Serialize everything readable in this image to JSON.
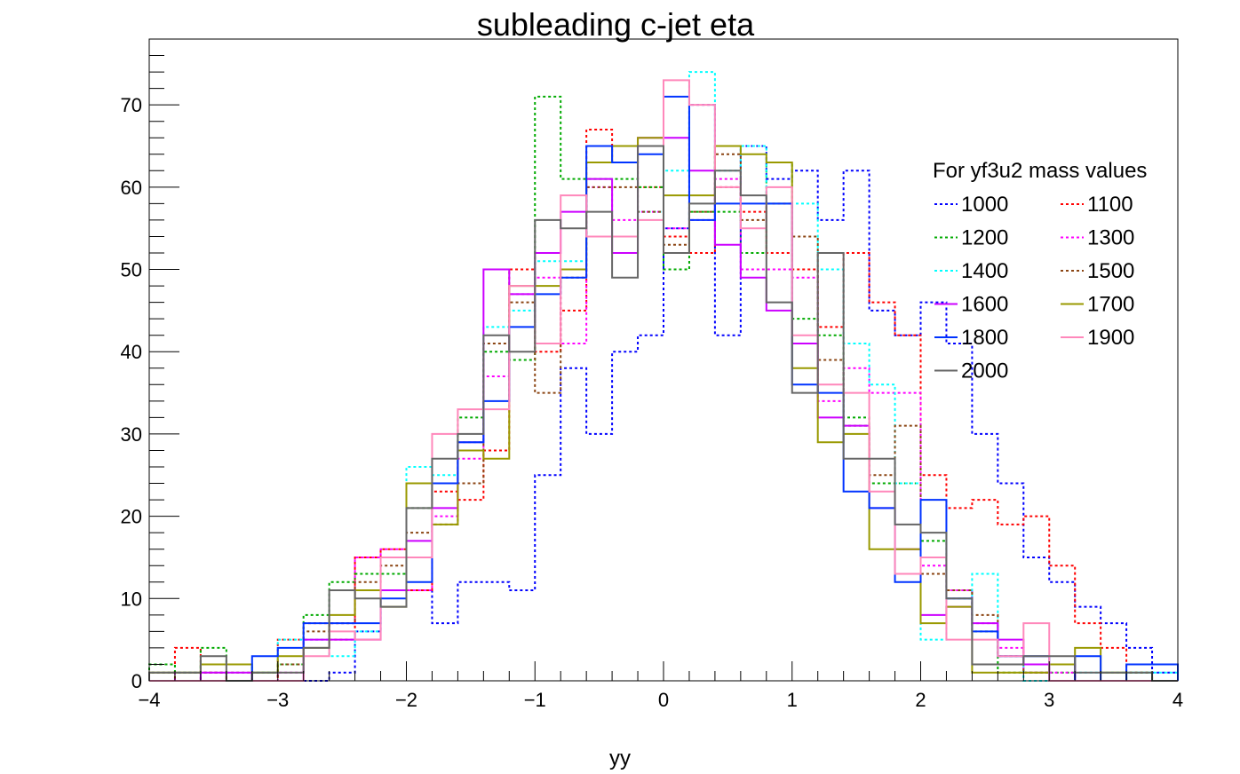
{
  "chart_data": {
    "type": "histogram",
    "title": "subleading c-jet eta",
    "xlabel": "yy",
    "ylabel": "",
    "xlim": [
      -4,
      4
    ],
    "ylim": [
      0,
      78
    ],
    "x_ticks": [
      "−4",
      "−3",
      "−2",
      "−1",
      "0",
      "1",
      "2",
      "3",
      "4"
    ],
    "y_ticks": [
      "0",
      "10",
      "20",
      "30",
      "40",
      "50",
      "60",
      "70"
    ],
    "grid": false,
    "legend_position": "top-right",
    "legend_title": "For yf3u2 mass values",
    "bins": {
      "min": -4,
      "max": 4,
      "count": 40
    },
    "series": [
      {
        "name": "1000",
        "color": "#0000ff",
        "dashed": true,
        "values": [
          0,
          0,
          0,
          0,
          0,
          0,
          0,
          1,
          6,
          11,
          11,
          7,
          12,
          12,
          11,
          25,
          38,
          30,
          40,
          42,
          55,
          70,
          42,
          65,
          61,
          62,
          56,
          62,
          45,
          42,
          46,
          41,
          30,
          24,
          15,
          12,
          9,
          7,
          4,
          1
        ]
      },
      {
        "name": "1100",
        "color": "#ff0000",
        "dashed": true,
        "values": [
          2,
          4,
          1,
          0,
          0,
          5,
          7,
          5,
          15,
          16,
          11,
          23,
          22,
          28,
          50,
          40,
          45,
          67,
          63,
          60,
          54,
          52,
          60,
          57,
          52,
          50,
          43,
          52,
          46,
          42,
          25,
          21,
          22,
          19,
          20,
          14,
          7,
          4,
          1,
          0
        ]
      },
      {
        "name": "1200",
        "color": "#00aa00",
        "dashed": true,
        "values": [
          2,
          1,
          4,
          2,
          1,
          2,
          8,
          12,
          13,
          13,
          21,
          24,
          32,
          40,
          39,
          71,
          61,
          61,
          61,
          60,
          50,
          57,
          57,
          52,
          63,
          44,
          42,
          32,
          24,
          24,
          17,
          11,
          6,
          1,
          1,
          1,
          0,
          0,
          1,
          0
        ]
      },
      {
        "name": "1300",
        "color": "#ff00ff",
        "dashed": true,
        "values": [
          0,
          1,
          0,
          0,
          0,
          1,
          5,
          7,
          15,
          16,
          11,
          20,
          27,
          37,
          47,
          49,
          41,
          60,
          56,
          57,
          55,
          56,
          61,
          50,
          50,
          49,
          34,
          38,
          35,
          35,
          14,
          11,
          7,
          4,
          1,
          1,
          0,
          0,
          0,
          0
        ]
      },
      {
        "name": "1400",
        "color": "#00ffff",
        "dashed": true,
        "values": [
          1,
          1,
          2,
          2,
          1,
          5,
          5,
          3,
          6,
          11,
          26,
          25,
          29,
          43,
          45,
          51,
          51,
          54,
          54,
          57,
          62,
          74,
          62,
          65,
          58,
          58,
          50,
          41,
          36,
          24,
          5,
          10,
          13,
          3,
          0,
          0,
          1,
          1,
          1,
          1
        ]
      },
      {
        "name": "1500",
        "color": "#8b4513",
        "dashed": true,
        "values": [
          1,
          0,
          1,
          1,
          0,
          2,
          6,
          7,
          12,
          14,
          18,
          19,
          24,
          41,
          46,
          35,
          49,
          60,
          60,
          57,
          53,
          57,
          64,
          56,
          58,
          54,
          39,
          31,
          25,
          31,
          13,
          11,
          8,
          3,
          1,
          2,
          0,
          0,
          0,
          0
        ]
      },
      {
        "name": "1600",
        "color": "#cc00ff",
        "dashed": false,
        "values": [
          0,
          0,
          1,
          1,
          0,
          0,
          5,
          5,
          5,
          11,
          17,
          21,
          29,
          50,
          47,
          52,
          57,
          61,
          52,
          66,
          66,
          62,
          53,
          49,
          45,
          41,
          32,
          31,
          21,
          16,
          8,
          9,
          7,
          5,
          2,
          2,
          0,
          0,
          0,
          0
        ]
      },
      {
        "name": "1700",
        "color": "#999900",
        "dashed": false,
        "values": [
          1,
          1,
          2,
          2,
          1,
          3,
          4,
          8,
          11,
          9,
          24,
          19,
          28,
          27,
          48,
          48,
          50,
          63,
          65,
          66,
          59,
          59,
          65,
          64,
          63,
          38,
          29,
          30,
          16,
          16,
          7,
          9,
          1,
          1,
          1,
          2,
          4,
          1,
          0,
          0
        ]
      },
      {
        "name": "1800",
        "color": "#0033ff",
        "dashed": false,
        "values": [
          0,
          0,
          0,
          0,
          3,
          4,
          7,
          7,
          7,
          10,
          12,
          24,
          29,
          34,
          43,
          47,
          49,
          65,
          63,
          64,
          71,
          56,
          58,
          58,
          58,
          36,
          35,
          23,
          21,
          12,
          22,
          10,
          6,
          3,
          3,
          0,
          3,
          0,
          2,
          2
        ]
      },
      {
        "name": "1900",
        "color": "#ff88bb",
        "dashed": false,
        "values": [
          0,
          0,
          0,
          0,
          0,
          0,
          3,
          6,
          5,
          15,
          15,
          30,
          33,
          33,
          48,
          41,
          59,
          54,
          54,
          56,
          73,
          70,
          60,
          55,
          60,
          42,
          36,
          35,
          23,
          13,
          15,
          5,
          5,
          3,
          7,
          0,
          0,
          0,
          0,
          0
        ]
      },
      {
        "name": "2000",
        "color": "#666666",
        "dashed": false,
        "values": [
          1,
          1,
          3,
          0,
          1,
          1,
          4,
          11,
          10,
          9,
          21,
          27,
          30,
          42,
          40,
          56,
          55,
          57,
          49,
          65,
          52,
          58,
          62,
          59,
          46,
          35,
          52,
          27,
          27,
          19,
          18,
          10,
          2,
          2,
          3,
          3,
          1,
          1,
          1,
          0
        ]
      }
    ]
  }
}
